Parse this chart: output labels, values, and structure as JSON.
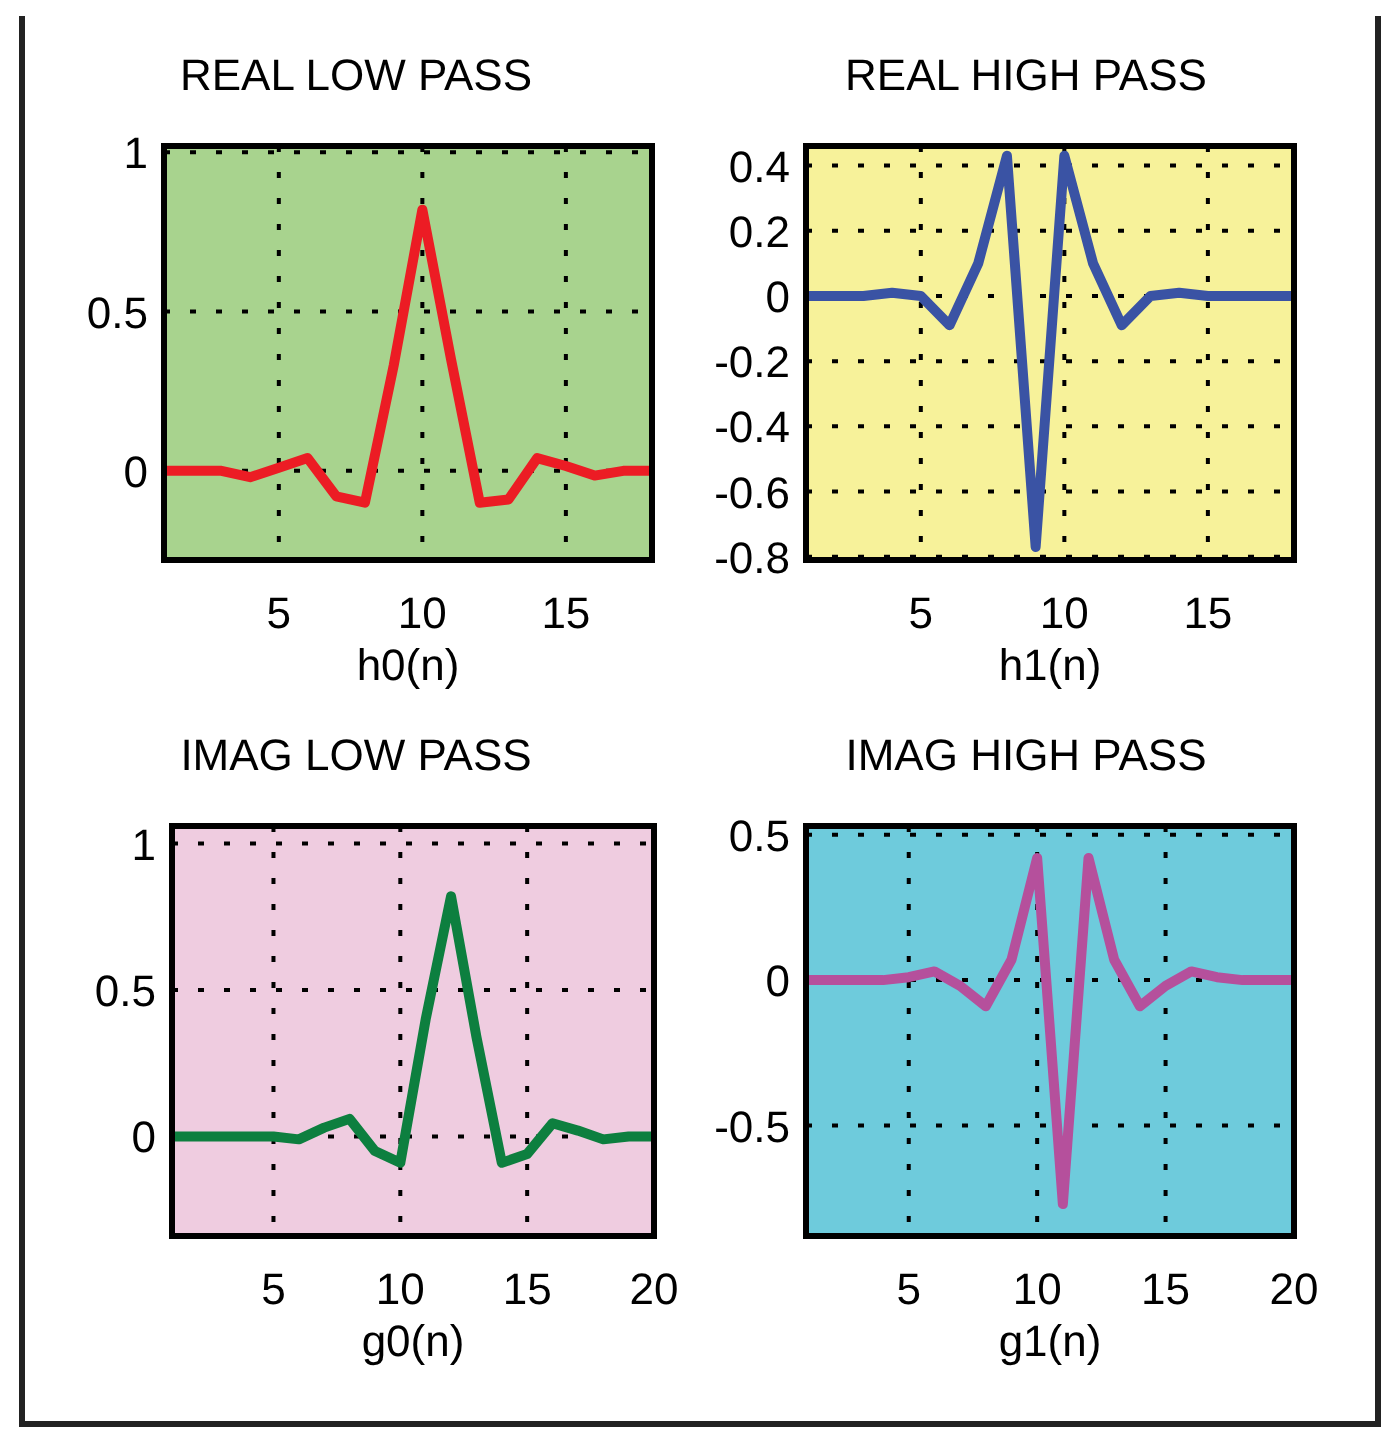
{
  "chart_data": [
    {
      "type": "line",
      "title": "REAL LOW PASS",
      "xlabel": "h0(n)",
      "xlim": [
        1,
        18
      ],
      "ylim": [
        -0.28,
        1.02
      ],
      "xticks": [
        5,
        10,
        15
      ],
      "yticks": [
        0,
        0.5,
        1
      ],
      "grid": true,
      "x": [
        1,
        2,
        3,
        4,
        5,
        6,
        7,
        8,
        9,
        10,
        11,
        12,
        13,
        14,
        15,
        16,
        17,
        18
      ],
      "series": [
        {
          "color": "#ec1c24",
          "values": [
            0,
            0,
            0,
            -0.02,
            0.01,
            0.04,
            -0.08,
            -0.1,
            0.33,
            0.82,
            0.35,
            -0.1,
            -0.09,
            0.04,
            0.015,
            -0.015,
            0,
            0
          ]
        }
      ]
    },
    {
      "type": "line",
      "title": "REAL HIGH PASS",
      "xlabel": "h1(n)",
      "xlim": [
        1,
        18
      ],
      "ylim": [
        -0.81,
        0.46
      ],
      "xticks": [
        5,
        10,
        15
      ],
      "yticks": [
        -0.8,
        -0.6,
        -0.4,
        -0.2,
        0,
        0.2,
        0.4
      ],
      "grid": true,
      "x": [
        1,
        2,
        3,
        4,
        5,
        6,
        7,
        8,
        9,
        10,
        11,
        12,
        13,
        14,
        15,
        16,
        17,
        18
      ],
      "series": [
        {
          "color": "#3a53a4",
          "values": [
            0,
            0,
            0,
            0.01,
            0,
            -0.09,
            0.1,
            0.43,
            -0.77,
            0.43,
            0.1,
            -0.09,
            0,
            0.01,
            0,
            0,
            0,
            0
          ]
        }
      ]
    },
    {
      "type": "line",
      "title": "IMAG LOW PASS",
      "xlabel": "g0(n)",
      "xlim": [
        1,
        20
      ],
      "ylim": [
        -0.34,
        1.06
      ],
      "xticks": [
        5,
        10,
        15,
        20
      ],
      "yticks": [
        0,
        0.5,
        1
      ],
      "grid": true,
      "x": [
        1,
        2,
        3,
        4,
        5,
        6,
        7,
        8,
        9,
        10,
        11,
        12,
        13,
        14,
        15,
        16,
        17,
        18,
        19,
        20
      ],
      "series": [
        {
          "color": "#0d7f3f",
          "values": [
            0,
            0,
            0,
            0,
            0,
            -0.01,
            0.03,
            0.06,
            -0.05,
            -0.09,
            0.4,
            0.82,
            0.34,
            -0.09,
            -0.06,
            0.045,
            0.02,
            -0.01,
            0,
            0
          ]
        }
      ]
    },
    {
      "type": "line",
      "title": "IMAG HIGH PASS",
      "xlabel": "g1(n)",
      "xlim": [
        1,
        20
      ],
      "ylim": [
        -0.88,
        0.53
      ],
      "xticks": [
        5,
        10,
        15,
        20
      ],
      "yticks": [
        -0.5,
        0,
        0.5
      ],
      "grid": true,
      "x": [
        1,
        2,
        3,
        4,
        5,
        6,
        7,
        8,
        9,
        10,
        11,
        12,
        13,
        14,
        15,
        16,
        17,
        18,
        19,
        20
      ],
      "series": [
        {
          "color": "#b5509c",
          "values": [
            0,
            0,
            0,
            0,
            0.01,
            0.03,
            -0.02,
            -0.09,
            0.07,
            0.42,
            -0.77,
            0.42,
            0.07,
            -0.09,
            -0.02,
            0.03,
            0.01,
            0,
            0,
            0
          ]
        }
      ]
    }
  ]
}
